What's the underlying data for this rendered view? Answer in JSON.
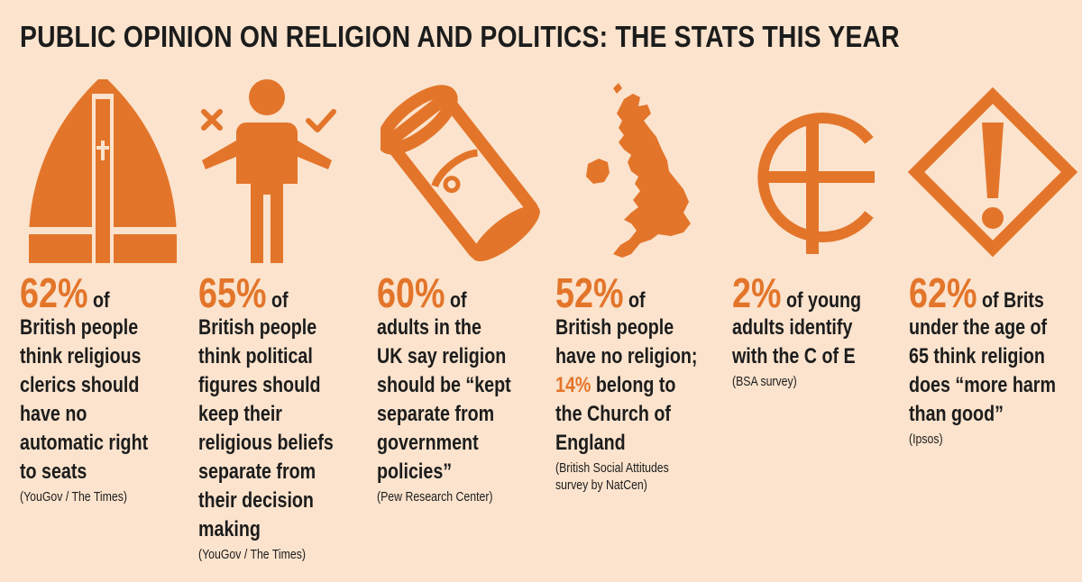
{
  "title": "PUBLIC OPINION ON RELIGION AND POLITICS: THE STATS THIS YEAR",
  "accent_color": "#e3752a",
  "background_color": "#fbe3cd",
  "stats": [
    {
      "icon": "mitre-icon",
      "percent": "62%",
      "lead_rest": " of",
      "lines": [
        "British people",
        "think religious",
        "clerics should",
        "have no",
        "automatic right",
        "to seats"
      ],
      "source": "(YouGov / The Times)"
    },
    {
      "icon": "person-choice-icon",
      "percent": "65%",
      "lead_rest": " of",
      "lines": [
        "British people",
        "think political",
        "figures should",
        "keep their",
        "religious beliefs",
        "separate from",
        "their decision",
        "making"
      ],
      "source": "(YouGov / The Times)"
    },
    {
      "icon": "scroll-icon",
      "percent": "60%",
      "lead_rest": " of",
      "lines": [
        "adults in the",
        "UK say religion",
        "should be “kept",
        "separate from",
        "government",
        "policies”"
      ],
      "source": "(Pew Research Center)"
    },
    {
      "icon": "uk-map-icon",
      "percent": "52%",
      "lead_rest": " of",
      "line1": "British people",
      "line2": "have no religion;",
      "highlight": "14%",
      "line3_rest": " belong to",
      "line4": "the Church of",
      "line5": "England",
      "source_line1": "(British Social Attitudes",
      "source_line2": "survey by NatCen)"
    },
    {
      "icon": "epsilon-cross-icon",
      "percent": "2%",
      "lead_rest": " of young",
      "lines": [
        "adults identify",
        "with the C of E"
      ],
      "source": "(BSA survey)"
    },
    {
      "icon": "warning-diamond-icon",
      "percent": "62%",
      "lead_rest": " of Brits",
      "lines": [
        "under the age of",
        "65 think religion",
        "does “more harm",
        "than good”"
      ],
      "source": "(Ipsos)"
    }
  ]
}
